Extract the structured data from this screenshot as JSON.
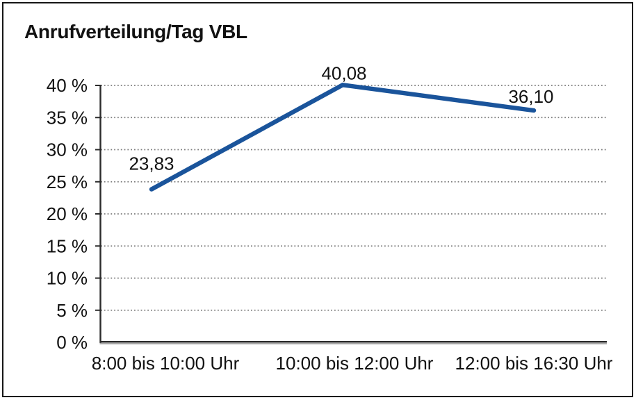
{
  "page": {
    "background_color": "#ffffff",
    "border_color": "#151515"
  },
  "chart_data": {
    "type": "line",
    "title": "Anrufverteilung/Tag VBL",
    "categories": [
      "8:00 bis 10:00 Uhr",
      "10:00 bis 12:00 Uhr",
      "12:00 bis 16:30 Uhr"
    ],
    "series": [
      {
        "name": "Anrufverteilung/Tag VBL",
        "values": [
          23.83,
          40.08,
          36.1
        ]
      }
    ],
    "point_labels": [
      "23,83",
      "40,08",
      "36,10"
    ],
    "unit": "%",
    "ylim": [
      0,
      40
    ],
    "y_tick_step": 5,
    "y_ticks": [
      {
        "value": 0,
        "label": "0 %"
      },
      {
        "value": 5,
        "label": "5 %"
      },
      {
        "value": 10,
        "label": "10 %"
      },
      {
        "value": 15,
        "label": "15 %"
      },
      {
        "value": 20,
        "label": "20 %"
      },
      {
        "value": 25,
        "label": "25 %"
      },
      {
        "value": 30,
        "label": "30 %"
      },
      {
        "value": 35,
        "label": "35 %"
      },
      {
        "value": 40,
        "label": "40 %"
      }
    ],
    "grid": "horizontal-dotted",
    "legend_position": "none",
    "colors": {
      "line": "#1a549b",
      "text": "#111111",
      "grid": "#7c7c7c",
      "axis": "#2b2b2b",
      "axis_shadow": "#a6a6a6"
    }
  }
}
